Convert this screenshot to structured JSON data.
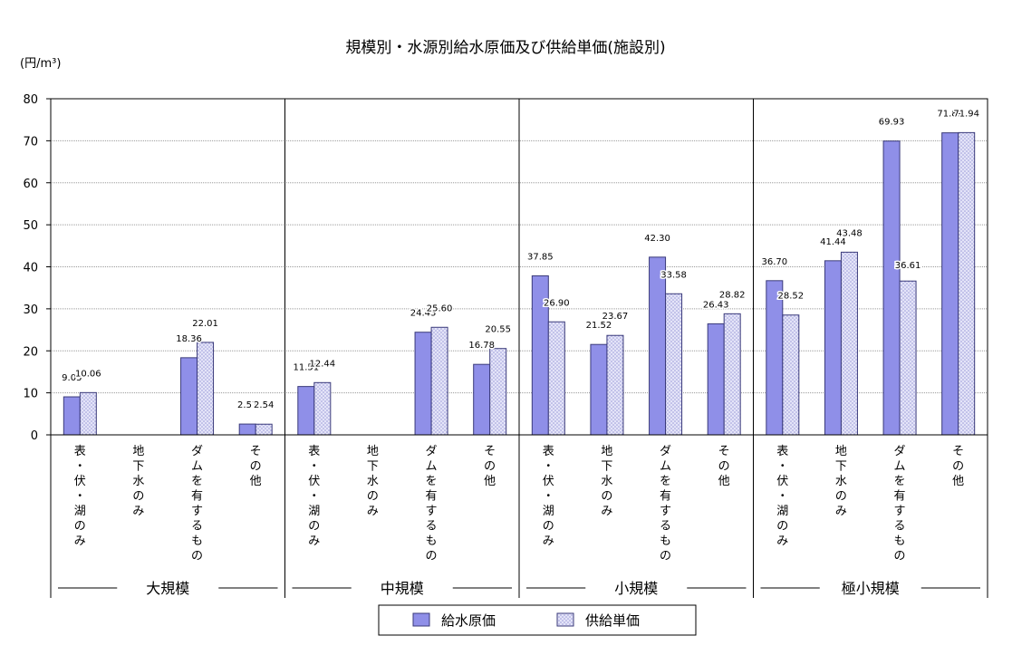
{
  "chart_data": {
    "type": "bar",
    "title": "規模別・水源別給水原価及び供給単価(施設別)",
    "ylabel": "(円/m³)",
    "ylim": [
      0,
      80
    ],
    "yticks": [
      0,
      10,
      20,
      30,
      40,
      50,
      60,
      70,
      80
    ],
    "grid": true,
    "legend_position": "bottom",
    "groups": [
      {
        "name": "大規模",
        "categories": [
          "表・伏・湖のみ",
          "地下水のみ",
          "ダムを有するもの",
          "その他"
        ]
      },
      {
        "name": "中規模",
        "categories": [
          "表・伏・湖のみ",
          "地下水のみ",
          "ダムを有するもの",
          "その他"
        ]
      },
      {
        "name": "小規模",
        "categories": [
          "表・伏・湖のみ",
          "地下水のみ",
          "ダムを有するもの",
          "その他"
        ]
      },
      {
        "name": "極小規模",
        "categories": [
          "表・伏・湖のみ",
          "地下水のみ",
          "ダムを有するもの",
          "その他"
        ]
      }
    ],
    "series": [
      {
        "name": "給水原価",
        "color": "#8f8fe8",
        "values": [
          9.05,
          null,
          18.36,
          2.57,
          11.51,
          null,
          24.43,
          16.78,
          37.85,
          21.52,
          42.3,
          26.43,
          36.7,
          41.44,
          69.93,
          71.89
        ],
        "labels": [
          "9.05",
          "",
          "18.36",
          "2.57",
          "11.51",
          "",
          "24.43",
          "16.78",
          "37.85",
          "21.52",
          "42.30",
          "26.43",
          "36.70",
          "41.44",
          "69.93",
          "71.89"
        ]
      },
      {
        "name": "供給単価",
        "color": "#dcdcf6",
        "values": [
          10.06,
          null,
          22.01,
          2.54,
          12.44,
          null,
          25.6,
          20.55,
          26.9,
          23.67,
          33.58,
          28.82,
          28.52,
          43.48,
          36.61,
          71.94
        ],
        "labels": [
          "10.06",
          "",
          "22.01",
          "2.54",
          "12.44",
          "",
          "25.60",
          "20.55",
          "26.90",
          "23.67",
          "33.58",
          "28.82",
          "28.52",
          "43.48",
          "36.61",
          "71.94"
        ]
      }
    ]
  }
}
